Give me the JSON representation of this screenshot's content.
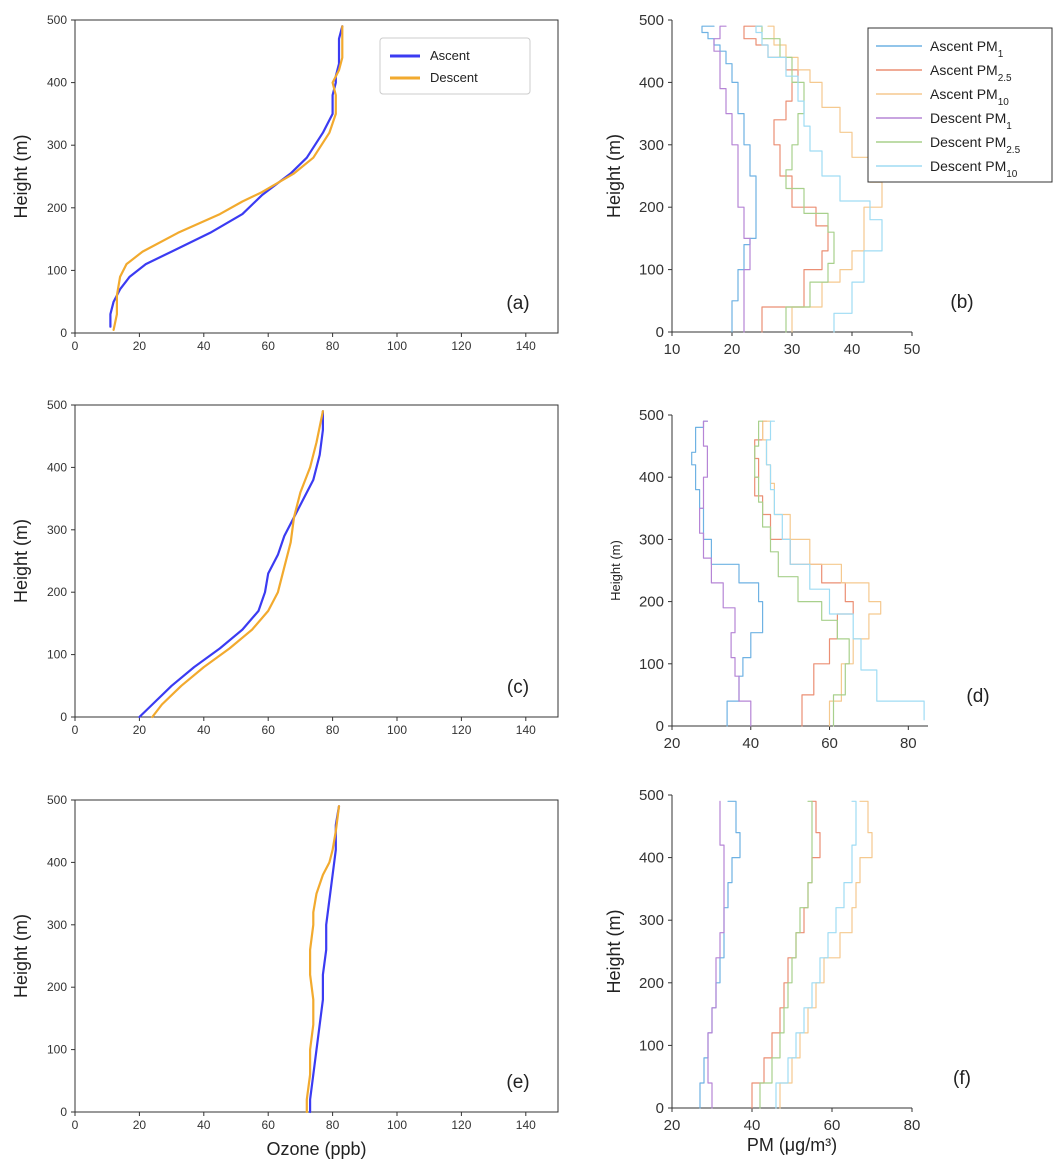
{
  "colors": {
    "Ascent": "#3b3bf2",
    "Descent": "#f2aa2e",
    "Ascent PM1": "#6fb2e3",
    "Ascent PM2.5": "#eb8f74",
    "Ascent PM10": "#f5c98f",
    "Descent PM1": "#b685d6",
    "Descent PM2.5": "#a8d08c",
    "Descent PM10": "#9fdcf4"
  },
  "chart_data": [
    {
      "panel": "a",
      "type": "line",
      "label": "(a)",
      "xlabel": "",
      "ylabel": "Height (m)",
      "xlim": [
        0,
        150
      ],
      "ylim": [
        0,
        500
      ],
      "xticks": [
        "0",
        "20",
        "40",
        "60",
        "80",
        "100",
        "120",
        "140"
      ],
      "yticks": [
        "0",
        "100",
        "200",
        "300",
        "400",
        "500"
      ],
      "legend": [
        "Ascent",
        "Descent"
      ],
      "series": [
        {
          "name": "Ascent",
          "x": [
            11,
            11,
            12,
            14,
            17,
            22,
            30,
            42,
            52,
            58,
            67,
            72,
            77,
            80,
            80,
            81,
            81,
            82,
            82,
            82,
            83
          ],
          "y": [
            10,
            30,
            50,
            70,
            90,
            110,
            130,
            160,
            190,
            220,
            255,
            280,
            320,
            350,
            380,
            400,
            410,
            430,
            450,
            470,
            490
          ]
        },
        {
          "name": "Descent",
          "x": [
            12,
            13,
            13,
            14,
            16,
            21,
            32,
            45,
            52,
            58,
            68,
            74,
            79,
            81,
            81,
            80,
            82,
            83,
            83,
            83
          ],
          "y": [
            5,
            30,
            60,
            90,
            110,
            130,
            160,
            190,
            210,
            225,
            255,
            280,
            320,
            350,
            380,
            400,
            420,
            440,
            470,
            490
          ]
        }
      ]
    },
    {
      "panel": "b",
      "type": "line",
      "label": "(b)",
      "xlabel": "",
      "ylabel": "Height (m)",
      "xlim": [
        10,
        50
      ],
      "ylim": [
        0,
        500
      ],
      "xticks": [
        "10",
        "20",
        "30",
        "40",
        "50"
      ],
      "yticks": [
        "0",
        "100",
        "200",
        "300",
        "400",
        "500"
      ],
      "legend": [
        "Ascent PM1",
        "Ascent PM2.5",
        "Ascent PM10",
        "Descent PM1",
        "Descent PM2.5",
        "Descent PM10"
      ],
      "series": [
        {
          "name": "Ascent PM1",
          "x": [
            20,
            21,
            22,
            23,
            24,
            24,
            23,
            22,
            21,
            20,
            19,
            18,
            17,
            16,
            15,
            16,
            17
          ],
          "y": [
            0,
            50,
            100,
            140,
            150,
            200,
            250,
            300,
            350,
            400,
            430,
            450,
            460,
            470,
            480,
            490,
            490
          ]
        },
        {
          "name": "Ascent PM2.5",
          "x": [
            25,
            32,
            35,
            36,
            34,
            30,
            28,
            27,
            29,
            30,
            31,
            29,
            26,
            24,
            22,
            25
          ],
          "y": [
            0,
            40,
            100,
            130,
            170,
            200,
            250,
            300,
            340,
            370,
            400,
            420,
            440,
            460,
            470,
            490
          ]
        },
        {
          "name": "Ascent PM10",
          "x": [
            30,
            35,
            38,
            40,
            42,
            45,
            43,
            40,
            38,
            35,
            33,
            31,
            29,
            27,
            26
          ],
          "y": [
            0,
            40,
            80,
            100,
            130,
            200,
            240,
            280,
            320,
            360,
            400,
            420,
            440,
            460,
            490
          ]
        },
        {
          "name": "Descent PM1",
          "x": [
            22,
            22,
            23,
            22,
            21,
            21,
            20,
            19,
            18,
            18,
            17,
            18,
            18,
            19
          ],
          "y": [
            0,
            50,
            100,
            150,
            200,
            250,
            300,
            350,
            390,
            420,
            450,
            470,
            480,
            490
          ]
        },
        {
          "name": "Descent PM2.5",
          "x": [
            29,
            33,
            36,
            37,
            36,
            32,
            29,
            30,
            31,
            32,
            30,
            28,
            25,
            24
          ],
          "y": [
            0,
            40,
            80,
            110,
            160,
            190,
            230,
            260,
            300,
            350,
            400,
            440,
            470,
            490
          ]
        },
        {
          "name": "Descent PM10",
          "x": [
            37,
            40,
            42,
            45,
            43,
            38,
            35,
            33,
            32,
            31,
            29,
            26,
            25,
            24,
            25
          ],
          "y": [
            0,
            30,
            80,
            130,
            180,
            210,
            250,
            290,
            330,
            370,
            410,
            440,
            460,
            480,
            490
          ]
        }
      ]
    },
    {
      "panel": "c",
      "type": "line",
      "label": "(c)",
      "xlabel": "",
      "ylabel": "Height (m)",
      "xlim": [
        0,
        150
      ],
      "ylim": [
        0,
        500
      ],
      "xticks": [
        "0",
        "20",
        "40",
        "60",
        "80",
        "100",
        "120",
        "140"
      ],
      "yticks": [
        "0",
        "100",
        "200",
        "300",
        "400",
        "500"
      ],
      "series": [
        {
          "name": "Ascent",
          "x": [
            20,
            24,
            30,
            37,
            45,
            52,
            57,
            59,
            60,
            63,
            65,
            68,
            71,
            74,
            76,
            77,
            77
          ],
          "y": [
            0,
            20,
            50,
            80,
            110,
            140,
            170,
            200,
            230,
            260,
            290,
            320,
            350,
            380,
            420,
            460,
            490
          ]
        },
        {
          "name": "Descent",
          "x": [
            24,
            27,
            33,
            40,
            48,
            55,
            60,
            63,
            65,
            67,
            68,
            70,
            73,
            75,
            77
          ],
          "y": [
            0,
            20,
            50,
            80,
            110,
            140,
            170,
            200,
            240,
            280,
            320,
            360,
            400,
            440,
            490
          ]
        }
      ]
    },
    {
      "panel": "d",
      "type": "line",
      "label": "(d)",
      "xlabel": "",
      "ylabel": "Height (m)",
      "xlim": [
        20,
        85
      ],
      "ylim": [
        0,
        500
      ],
      "xticks": [
        "20",
        "40",
        "60",
        "80"
      ],
      "yticks": [
        "0",
        "100",
        "200",
        "300",
        "400",
        "500"
      ],
      "series": [
        {
          "name": "Ascent PM1",
          "x": [
            34,
            37,
            38,
            40,
            43,
            42,
            37,
            30,
            28,
            27,
            26,
            26,
            25,
            26,
            28,
            29
          ],
          "y": [
            0,
            40,
            80,
            110,
            150,
            200,
            230,
            260,
            300,
            350,
            380,
            400,
            420,
            440,
            480,
            490
          ]
        },
        {
          "name": "Ascent PM2.5",
          "x": [
            53,
            56,
            60,
            62,
            66,
            64,
            58,
            50,
            45,
            43,
            41,
            42,
            41,
            43,
            44
          ],
          "y": [
            0,
            50,
            100,
            140,
            180,
            200,
            230,
            260,
            300,
            340,
            370,
            400,
            430,
            460,
            490
          ]
        },
        {
          "name": "Ascent PM10",
          "x": [
            60,
            63,
            66,
            70,
            73,
            70,
            63,
            55,
            50,
            46,
            45,
            44,
            43,
            45
          ],
          "y": [
            0,
            40,
            100,
            140,
            180,
            200,
            230,
            260,
            300,
            340,
            390,
            420,
            460,
            490
          ]
        },
        {
          "name": "Descent PM1",
          "x": [
            40,
            37,
            36,
            35,
            36,
            33,
            30,
            28,
            27,
            28,
            29,
            28,
            29
          ],
          "y": [
            0,
            40,
            80,
            110,
            150,
            190,
            230,
            270,
            310,
            350,
            400,
            450,
            490
          ]
        },
        {
          "name": "Descent PM2.5",
          "x": [
            61,
            64,
            65,
            62,
            58,
            52,
            47,
            45,
            43,
            42,
            41,
            42,
            43
          ],
          "y": [
            0,
            50,
            100,
            140,
            170,
            200,
            240,
            280,
            320,
            360,
            400,
            450,
            490
          ]
        },
        {
          "name": "Descent PM10",
          "x": [
            84,
            72,
            68,
            66,
            60,
            55,
            50,
            48,
            46,
            45,
            44,
            45,
            46
          ],
          "y": [
            10,
            40,
            90,
            140,
            180,
            220,
            260,
            300,
            340,
            380,
            420,
            460,
            490
          ]
        }
      ]
    },
    {
      "panel": "e",
      "type": "line",
      "label": "(e)",
      "xlabel": "Ozone (ppb)",
      "ylabel": "Height (m)",
      "xlim": [
        0,
        150
      ],
      "ylim": [
        0,
        500
      ],
      "xticks": [
        "0",
        "20",
        "40",
        "60",
        "80",
        "100",
        "120",
        "140"
      ],
      "yticks": [
        "0",
        "100",
        "200",
        "300",
        "400",
        "500"
      ],
      "series": [
        {
          "name": "Ascent",
          "x": [
            73,
            73,
            74,
            75,
            76,
            77,
            77,
            78,
            78,
            79,
            80,
            81,
            81,
            81,
            82
          ],
          "y": [
            0,
            20,
            60,
            100,
            140,
            180,
            220,
            260,
            300,
            340,
            380,
            420,
            440,
            460,
            490
          ]
        },
        {
          "name": "Descent",
          "x": [
            72,
            72,
            73,
            73,
            74,
            74,
            73,
            73,
            74,
            74,
            75,
            77,
            79,
            80,
            81,
            82
          ],
          "y": [
            0,
            20,
            60,
            100,
            140,
            180,
            220,
            260,
            300,
            320,
            350,
            380,
            400,
            420,
            450,
            490
          ]
        }
      ]
    },
    {
      "panel": "f",
      "type": "line",
      "label": "(f)",
      "xlabel": "PM  (μg/m³)",
      "ylabel": "Height (m)",
      "xlim": [
        20,
        80
      ],
      "ylim": [
        0,
        500
      ],
      "xticks": [
        "20",
        "40",
        "60",
        "80"
      ],
      "yticks": [
        "0",
        "100",
        "200",
        "300",
        "400",
        "500"
      ],
      "series": [
        {
          "name": "Ascent PM1",
          "x": [
            27,
            28,
            29,
            30,
            31,
            32,
            33,
            33,
            34,
            35,
            37,
            36,
            34
          ],
          "y": [
            0,
            40,
            80,
            120,
            160,
            200,
            240,
            280,
            320,
            360,
            400,
            440,
            490
          ]
        },
        {
          "name": "Ascent PM2.5",
          "x": [
            40,
            43,
            45,
            47,
            48,
            49,
            51,
            53,
            54,
            55,
            57,
            56,
            55
          ],
          "y": [
            0,
            40,
            80,
            120,
            160,
            200,
            240,
            280,
            320,
            360,
            400,
            440,
            490
          ]
        },
        {
          "name": "Ascent PM10",
          "x": [
            47,
            50,
            52,
            54,
            56,
            58,
            62,
            65,
            66,
            67,
            70,
            69,
            67
          ],
          "y": [
            0,
            40,
            80,
            120,
            160,
            200,
            240,
            280,
            320,
            360,
            400,
            440,
            490
          ]
        },
        {
          "name": "Descent PM1",
          "x": [
            30,
            29,
            29,
            30,
            31,
            31,
            32,
            33,
            33,
            33,
            32,
            32
          ],
          "y": [
            0,
            40,
            80,
            120,
            160,
            200,
            240,
            280,
            320,
            360,
            420,
            490
          ]
        },
        {
          "name": "Descent PM2.5",
          "x": [
            42,
            45,
            47,
            48,
            49,
            50,
            51,
            52,
            54,
            55,
            55,
            54
          ],
          "y": [
            0,
            40,
            80,
            120,
            160,
            200,
            240,
            280,
            320,
            360,
            420,
            490
          ]
        },
        {
          "name": "Descent PM10",
          "x": [
            46,
            49,
            51,
            53,
            55,
            57,
            59,
            61,
            63,
            65,
            66,
            65
          ],
          "y": [
            0,
            40,
            80,
            120,
            160,
            200,
            240,
            280,
            320,
            360,
            420,
            490
          ]
        }
      ]
    }
  ]
}
